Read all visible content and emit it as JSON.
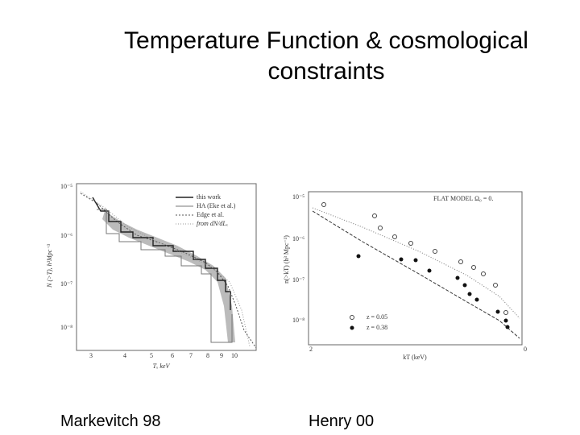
{
  "slide": {
    "title": "Temperature Function  & cosmological constraints",
    "captions": [
      "Markevitch 98",
      "Henry 00"
    ]
  },
  "left_plot": {
    "y_axis_label": "N (>T),  h³Mpc⁻³",
    "x_axis_label": "Tₓ   keV",
    "yticks": [
      "10⁻⁵",
      "10⁻⁶",
      "10⁻⁷",
      "10⁻⁸"
    ],
    "xticks": [
      "3",
      "4",
      "5",
      "6",
      "7",
      "8",
      "9",
      "10"
    ],
    "legend": [
      "this work",
      "HA (Eke et al.)",
      "Edge et al.",
      "from dN/dLₓ"
    ]
  },
  "right_plot": {
    "annotation": "FLAT MODEL Ω₀ = 0.",
    "y_axis_label": "n(>kT) (h³ Mpc⁻³)",
    "x_axis_label": "kT (keV)",
    "yticks": [
      "10⁻⁵",
      "10⁻⁶",
      "10⁻⁷",
      "10⁻⁸"
    ],
    "xticks": [
      "2",
      "0"
    ],
    "legend": [
      "z = 0.05",
      "z = 0.38"
    ]
  }
}
